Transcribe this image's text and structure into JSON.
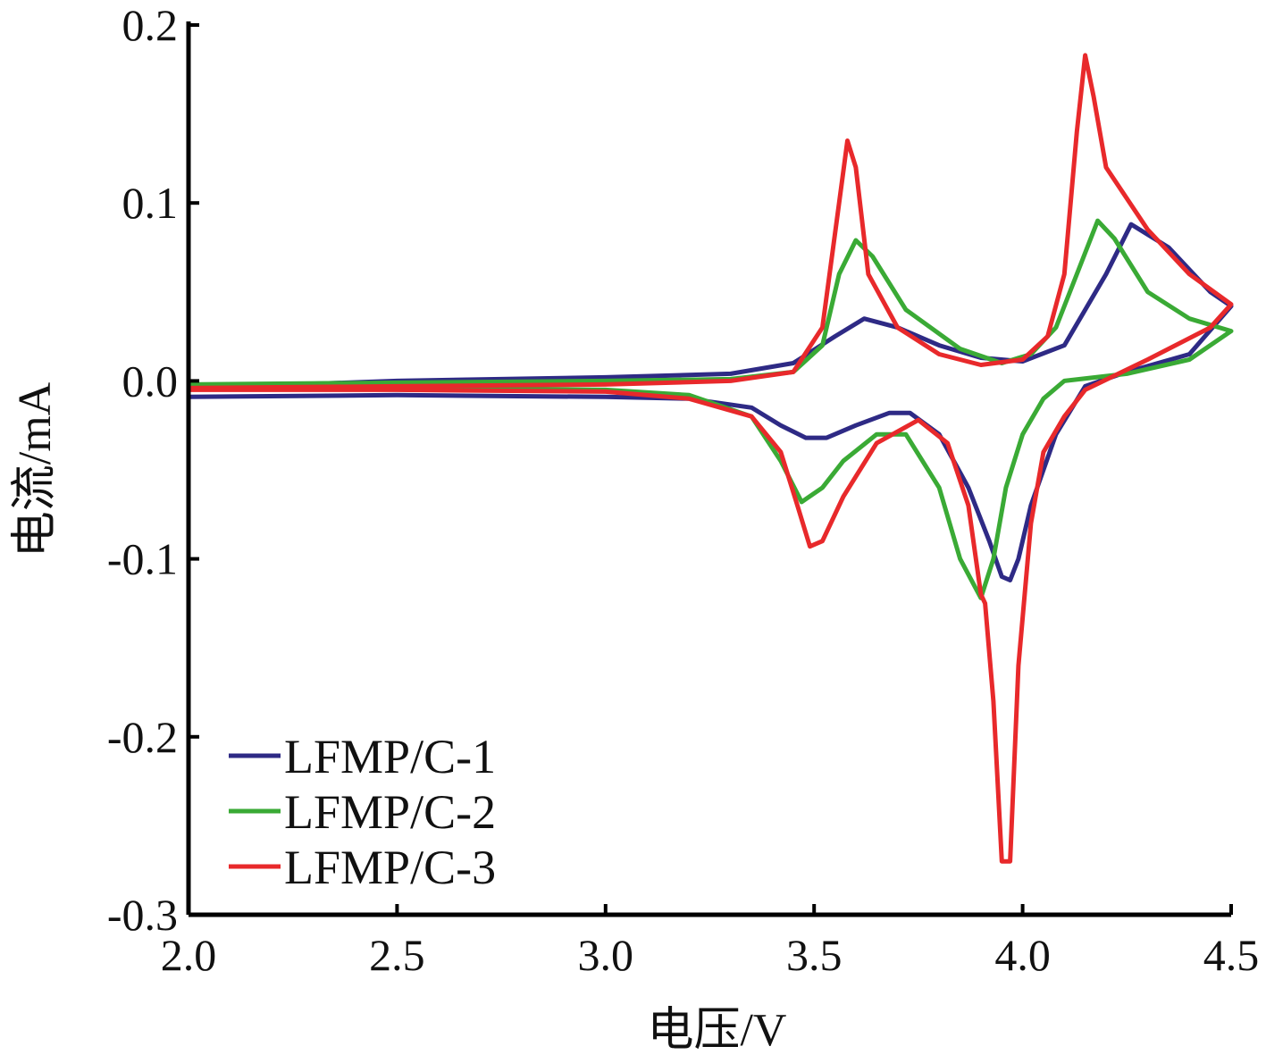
{
  "chart_data": {
    "type": "line",
    "title": "",
    "xlabel": "电压/V",
    "ylabel": "电流/mA",
    "xlim": [
      2.0,
      4.5
    ],
    "ylim": [
      -0.3,
      0.2
    ],
    "xticks": [
      "2.0",
      "2.5",
      "3.0",
      "3.5",
      "4.0",
      "4.5"
    ],
    "yticks": [
      "0.2",
      "0.1",
      "0.0",
      "-0.1",
      "-0.2",
      "-0.3"
    ],
    "grid": false,
    "legend_position": "bottom-left",
    "series": [
      {
        "name": "LFMP/C-1",
        "color": "#2e2a85",
        "x": [
          2.0,
          2.5,
          3.0,
          3.3,
          3.45,
          3.55,
          3.62,
          3.7,
          3.8,
          3.9,
          4.0,
          4.1,
          4.2,
          4.26,
          4.35,
          4.45,
          4.5,
          4.4,
          4.25,
          4.15,
          4.08,
          4.02,
          3.99,
          3.97,
          3.95,
          3.92,
          3.87,
          3.8,
          3.73,
          3.68,
          3.6,
          3.53,
          3.48,
          3.42,
          3.35,
          3.2,
          3.0,
          2.5,
          2.0
        ],
        "y": [
          -0.004,
          0.0,
          0.002,
          0.004,
          0.01,
          0.025,
          0.035,
          0.03,
          0.02,
          0.013,
          0.011,
          0.02,
          0.06,
          0.088,
          0.075,
          0.05,
          0.042,
          0.015,
          0.005,
          -0.003,
          -0.03,
          -0.07,
          -0.1,
          -0.112,
          -0.11,
          -0.09,
          -0.06,
          -0.03,
          -0.018,
          -0.018,
          -0.025,
          -0.032,
          -0.032,
          -0.025,
          -0.015,
          -0.01,
          -0.009,
          -0.008,
          -0.009
        ]
      },
      {
        "name": "LFMP/C-2",
        "color": "#3aaa35",
        "x": [
          2.0,
          2.5,
          3.0,
          3.3,
          3.45,
          3.52,
          3.56,
          3.6,
          3.64,
          3.72,
          3.85,
          3.95,
          4.02,
          4.08,
          4.13,
          4.18,
          4.22,
          4.3,
          4.4,
          4.5,
          4.4,
          4.25,
          4.1,
          4.05,
          4.0,
          3.96,
          3.93,
          3.9,
          3.85,
          3.8,
          3.72,
          3.65,
          3.57,
          3.52,
          3.47,
          3.42,
          3.35,
          3.2,
          3.0,
          2.5,
          2.0
        ],
        "y": [
          -0.002,
          -0.001,
          0.0,
          0.001,
          0.005,
          0.02,
          0.06,
          0.079,
          0.07,
          0.04,
          0.018,
          0.01,
          0.015,
          0.03,
          0.06,
          0.09,
          0.08,
          0.05,
          0.035,
          0.028,
          0.012,
          0.004,
          0.0,
          -0.01,
          -0.03,
          -0.06,
          -0.1,
          -0.122,
          -0.1,
          -0.06,
          -0.03,
          -0.03,
          -0.045,
          -0.06,
          -0.068,
          -0.045,
          -0.02,
          -0.008,
          -0.005,
          -0.004,
          -0.004
        ]
      },
      {
        "name": "LFMP/C-3",
        "color": "#e8292b",
        "x": [
          2.0,
          2.5,
          3.0,
          3.3,
          3.45,
          3.52,
          3.56,
          3.58,
          3.6,
          3.63,
          3.7,
          3.8,
          3.9,
          4.0,
          4.06,
          4.1,
          4.13,
          4.15,
          4.17,
          4.2,
          4.3,
          4.4,
          4.5,
          4.45,
          4.3,
          4.15,
          4.1,
          4.05,
          4.02,
          3.99,
          3.97,
          3.95,
          3.93,
          3.91,
          3.9,
          3.87,
          3.82,
          3.75,
          3.65,
          3.57,
          3.52,
          3.49,
          3.46,
          3.42,
          3.35,
          3.2,
          3.0,
          2.5,
          2.0
        ],
        "y": [
          -0.004,
          -0.003,
          -0.002,
          0.0,
          0.005,
          0.03,
          0.1,
          0.135,
          0.12,
          0.06,
          0.03,
          0.015,
          0.009,
          0.012,
          0.025,
          0.06,
          0.14,
          0.183,
          0.16,
          0.12,
          0.085,
          0.06,
          0.043,
          0.03,
          0.012,
          -0.005,
          -0.02,
          -0.04,
          -0.08,
          -0.16,
          -0.27,
          -0.27,
          -0.18,
          -0.125,
          -0.12,
          -0.07,
          -0.035,
          -0.022,
          -0.035,
          -0.065,
          -0.09,
          -0.093,
          -0.07,
          -0.04,
          -0.02,
          -0.01,
          -0.006,
          -0.005,
          -0.005
        ]
      }
    ]
  }
}
